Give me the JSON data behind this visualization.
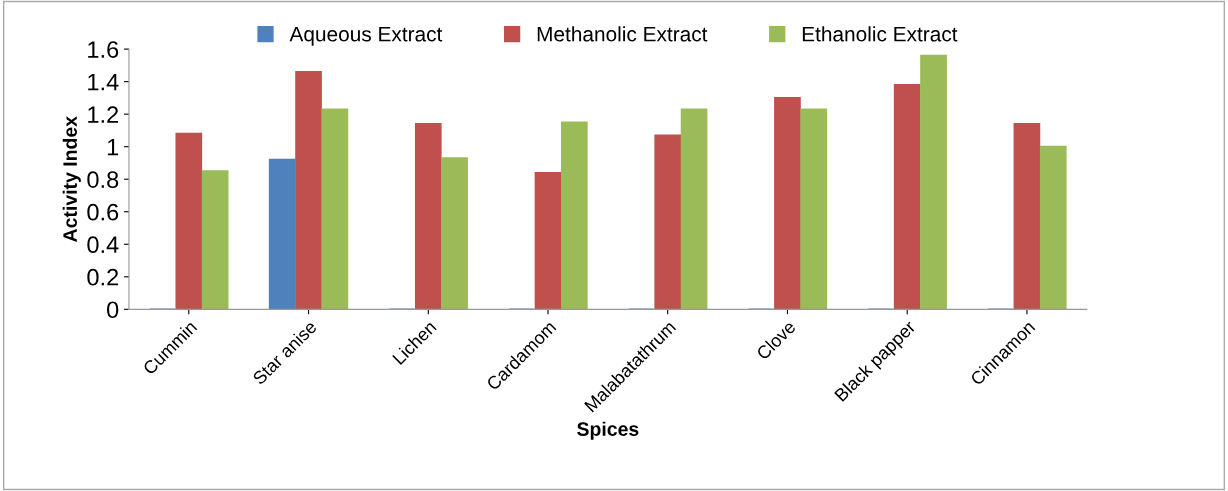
{
  "chart_data": {
    "type": "bar",
    "xlabel": "Spices",
    "ylabel": "Activity Index",
    "categories": [
      "Cummin",
      "Star anise",
      "Lichen",
      "Cardamom",
      "Malabatathrum",
      "Clove",
      "Black papper",
      "Cinnamon"
    ],
    "series": [
      {
        "name": "Aqueous Extract",
        "color": "#4f81bd",
        "values": [
          0,
          0.92,
          0,
          0,
          0,
          0,
          0,
          0
        ]
      },
      {
        "name": "Methanolic Extract",
        "color": "#c0504d",
        "values": [
          1.08,
          1.46,
          1.14,
          0.84,
          1.07,
          1.3,
          1.38,
          1.14
        ]
      },
      {
        "name": "Ethanolic Extract",
        "color": "#9bbb59",
        "values": [
          0.85,
          1.23,
          0.93,
          1.15,
          1.23,
          1.23,
          1.56,
          1.0
        ]
      }
    ],
    "ylim": [
      0,
      1.6
    ],
    "yticks": [
      0,
      0.2,
      0.4,
      0.6,
      0.8,
      1,
      1.2,
      1.4,
      1.6
    ],
    "grid": false,
    "legend": "top"
  }
}
